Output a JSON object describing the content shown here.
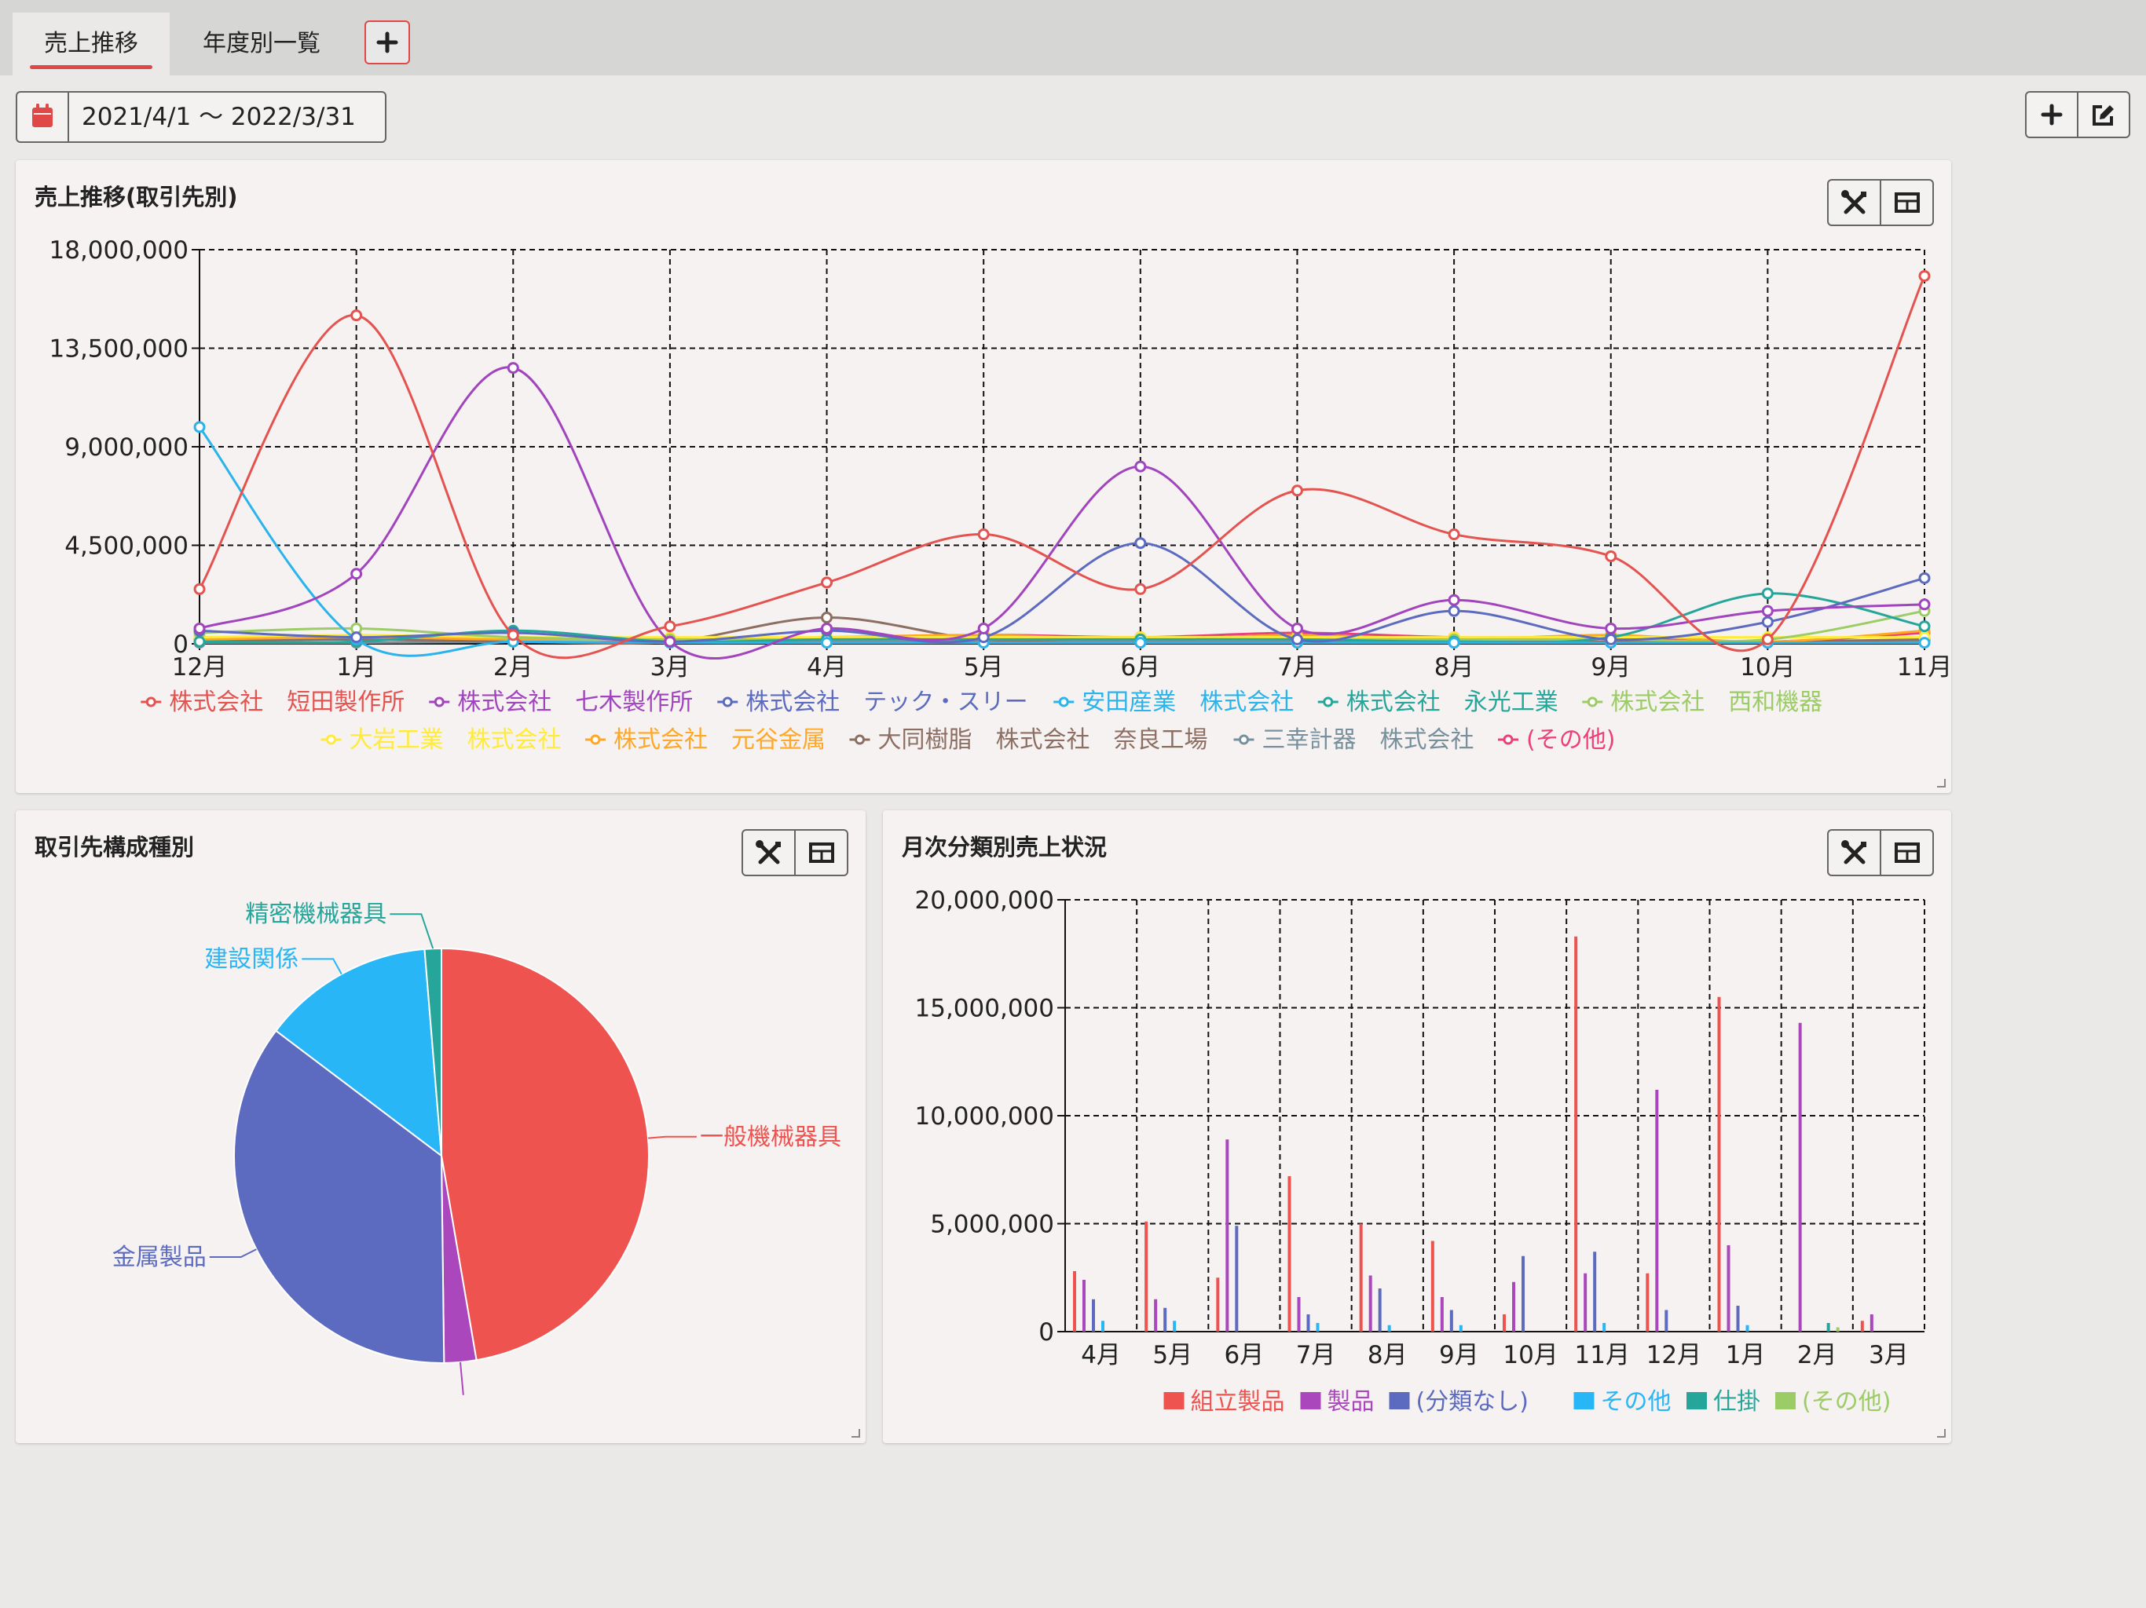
{
  "tabs": [
    {
      "label": "売上推移",
      "active": true
    },
    {
      "label": "年度別一覧",
      "active": false
    }
  ],
  "date_range": "2021/4/1 ～ 2022/3/31",
  "icons": {
    "calendar": "calendar-icon",
    "add": "plus-icon",
    "edit": "edit-icon",
    "tools": "tools-icon",
    "table": "table-icon"
  },
  "colors": {
    "accent": "#e04848"
  },
  "panels": {
    "line": {
      "title": "売上推移(取引先別)"
    },
    "pie": {
      "title": "取引先構成種別"
    },
    "bar": {
      "title": "月次分類別売上状況"
    }
  },
  "chart_data": [
    {
      "type": "line",
      "title": "売上推移(取引先別)",
      "categories": [
        "12月",
        "1月",
        "2月",
        "3月",
        "4月",
        "5月",
        "6月",
        "7月",
        "8月",
        "9月",
        "10月",
        "11月"
      ],
      "ylim": [
        0,
        18000000
      ],
      "yticks": [
        0,
        4500000,
        9000000,
        13500000,
        18000000
      ],
      "ytick_labels": [
        "0",
        "4,500,000",
        "9,000,000",
        "13,500,000",
        "18,000,000"
      ],
      "grid": true,
      "legend_position": "bottom",
      "series": [
        {
          "name": "株式会社　短田製作所",
          "color": "#e4534f",
          "values": [
            2500000,
            15000000,
            400000,
            800000,
            2800000,
            5000000,
            2500000,
            7000000,
            5000000,
            4000000,
            200000,
            16800000
          ]
        },
        {
          "name": "株式会社　七木製作所",
          "color": "#a144bd",
          "values": [
            700000,
            3200000,
            12600000,
            100000,
            700000,
            700000,
            8100000,
            700000,
            2000000,
            700000,
            1500000,
            1800000
          ]
        },
        {
          "name": "株式会社　テック・スリー",
          "color": "#5c6bc0",
          "values": [
            600000,
            300000,
            500000,
            100000,
            600000,
            300000,
            4600000,
            200000,
            1500000,
            200000,
            1000000,
            3000000
          ]
        },
        {
          "name": "安田産業　株式会社",
          "color": "#2bb3ec",
          "values": [
            9900000,
            200000,
            100000,
            50000,
            50000,
            50000,
            50000,
            50000,
            50000,
            50000,
            50000,
            50000
          ]
        },
        {
          "name": "株式会社　永光工業",
          "color": "#26a69a",
          "values": [
            100000,
            100000,
            600000,
            100000,
            200000,
            200000,
            200000,
            200000,
            100000,
            300000,
            2300000,
            800000
          ]
        },
        {
          "name": "株式会社　西和機器",
          "color": "#9ccc65",
          "values": [
            500000,
            700000,
            300000,
            200000,
            200000,
            200000,
            200000,
            200000,
            200000,
            200000,
            200000,
            1500000
          ]
        },
        {
          "name": "大岩工業　株式会社",
          "color": "#ffeb3b",
          "values": [
            300000,
            400000,
            300000,
            300000,
            300000,
            300000,
            300000,
            300000,
            300000,
            300000,
            300000,
            300000
          ]
        },
        {
          "name": "株式会社　元谷金属",
          "color": "#ffa726",
          "values": [
            200000,
            300000,
            200000,
            200000,
            300000,
            400000,
            200000,
            400000,
            200000,
            400000,
            100000,
            600000
          ]
        },
        {
          "name": "大同樹脂　株式会社　奈良工場",
          "color": "#8d6e63",
          "values": [
            100000,
            200000,
            100000,
            100000,
            1200000,
            200000,
            300000,
            200000,
            100000,
            100000,
            100000,
            200000
          ]
        },
        {
          "name": "三幸計器　株式会社",
          "color": "#78909c",
          "values": [
            50000,
            50000,
            100000,
            50000,
            100000,
            100000,
            100000,
            100000,
            50000,
            100000,
            50000,
            100000
          ]
        },
        {
          "name": "(その他)",
          "color": "#ec407a",
          "values": [
            300000,
            200000,
            300000,
            100000,
            100000,
            400000,
            300000,
            500000,
            300000,
            300000,
            100000,
            500000
          ]
        }
      ],
      "legend_rows": [
        [
          {
            "label": "株式会社　短田製作所",
            "color": "#e4534f"
          },
          {
            "label": "株式会社　七木製作所",
            "color": "#a144bd"
          },
          {
            "label": "株式会社　テック・スリー",
            "color": "#5c6bc0"
          },
          {
            "label": "安田産業　株式会社",
            "color": "#2bb3ec"
          },
          {
            "label": "株式会社　永光工業",
            "color": "#26a69a"
          },
          {
            "label": "株式会社　西和機器",
            "color": "#9ccc65"
          }
        ],
        [
          {
            "label": "大岩工業　株式会社",
            "color": "#ffeb3b"
          },
          {
            "label": "株式会社　元谷金属",
            "color": "#ffa726"
          },
          {
            "label": "大同樹脂　株式会社　奈良工場",
            "color": "#8d6e63"
          },
          {
            "label": "三幸計器　株式会社",
            "color": "#78909c"
          },
          {
            "label": "(その他)",
            "color": "#ec407a"
          }
        ]
      ]
    },
    {
      "type": "pie",
      "title": "取引先構成種別",
      "slices": [
        {
          "label": "一般機械器具",
          "value": 47.3,
          "color": "#ef5350",
          "show_label": true
        },
        {
          "label": "",
          "value": 2.5,
          "color": "#ab47bc",
          "show_label": false
        },
        {
          "label": "金属製品",
          "value": 35.5,
          "color": "#5c6bc0",
          "show_label": true
        },
        {
          "label": "建設関係",
          "value": 13.4,
          "color": "#29b6f6",
          "show_label": true
        },
        {
          "label": "精密機械器具",
          "value": 1.3,
          "color": "#26a69a",
          "show_label": true
        }
      ]
    },
    {
      "type": "bar",
      "title": "月次分類別売上状況",
      "categories": [
        "4月",
        "5月",
        "6月",
        "7月",
        "8月",
        "9月",
        "10月",
        "11月",
        "12月",
        "1月",
        "2月",
        "3月"
      ],
      "ylim": [
        0,
        20000000
      ],
      "yticks": [
        0,
        5000000,
        10000000,
        15000000,
        20000000
      ],
      "ytick_labels": [
        "0",
        "5,000,000",
        "10,000,000",
        "15,000,000",
        "20,000,000"
      ],
      "grid": true,
      "legend_position": "bottom",
      "series": [
        {
          "name": "組立製品",
          "color": "#ef5350",
          "values": [
            2800000,
            5100000,
            2500000,
            7200000,
            5000000,
            4200000,
            800000,
            18300000,
            2700000,
            15500000,
            0,
            500000
          ]
        },
        {
          "name": "製品",
          "color": "#ab47bc",
          "values": [
            2400000,
            1500000,
            8900000,
            1600000,
            2600000,
            1600000,
            2300000,
            2700000,
            11200000,
            4000000,
            14300000,
            800000
          ]
        },
        {
          "name": "(分類なし)",
          "color": "#5c6bc0",
          "values": [
            1500000,
            1100000,
            4900000,
            800000,
            2000000,
            1000000,
            3500000,
            3700000,
            1000000,
            1200000,
            0,
            0
          ]
        },
        {
          "name": "その他",
          "color": "#29b6f6",
          "values": [
            500000,
            500000,
            0,
            400000,
            300000,
            300000,
            0,
            400000,
            0,
            300000,
            0,
            0
          ]
        },
        {
          "name": "仕掛",
          "color": "#26a69a",
          "values": [
            0,
            0,
            0,
            0,
            0,
            0,
            0,
            0,
            0,
            0,
            400000,
            0
          ]
        },
        {
          "name": "(その他)",
          "color": "#9ccc65",
          "values": [
            0,
            0,
            0,
            0,
            0,
            0,
            0,
            0,
            0,
            0,
            200000,
            0
          ]
        }
      ]
    }
  ]
}
